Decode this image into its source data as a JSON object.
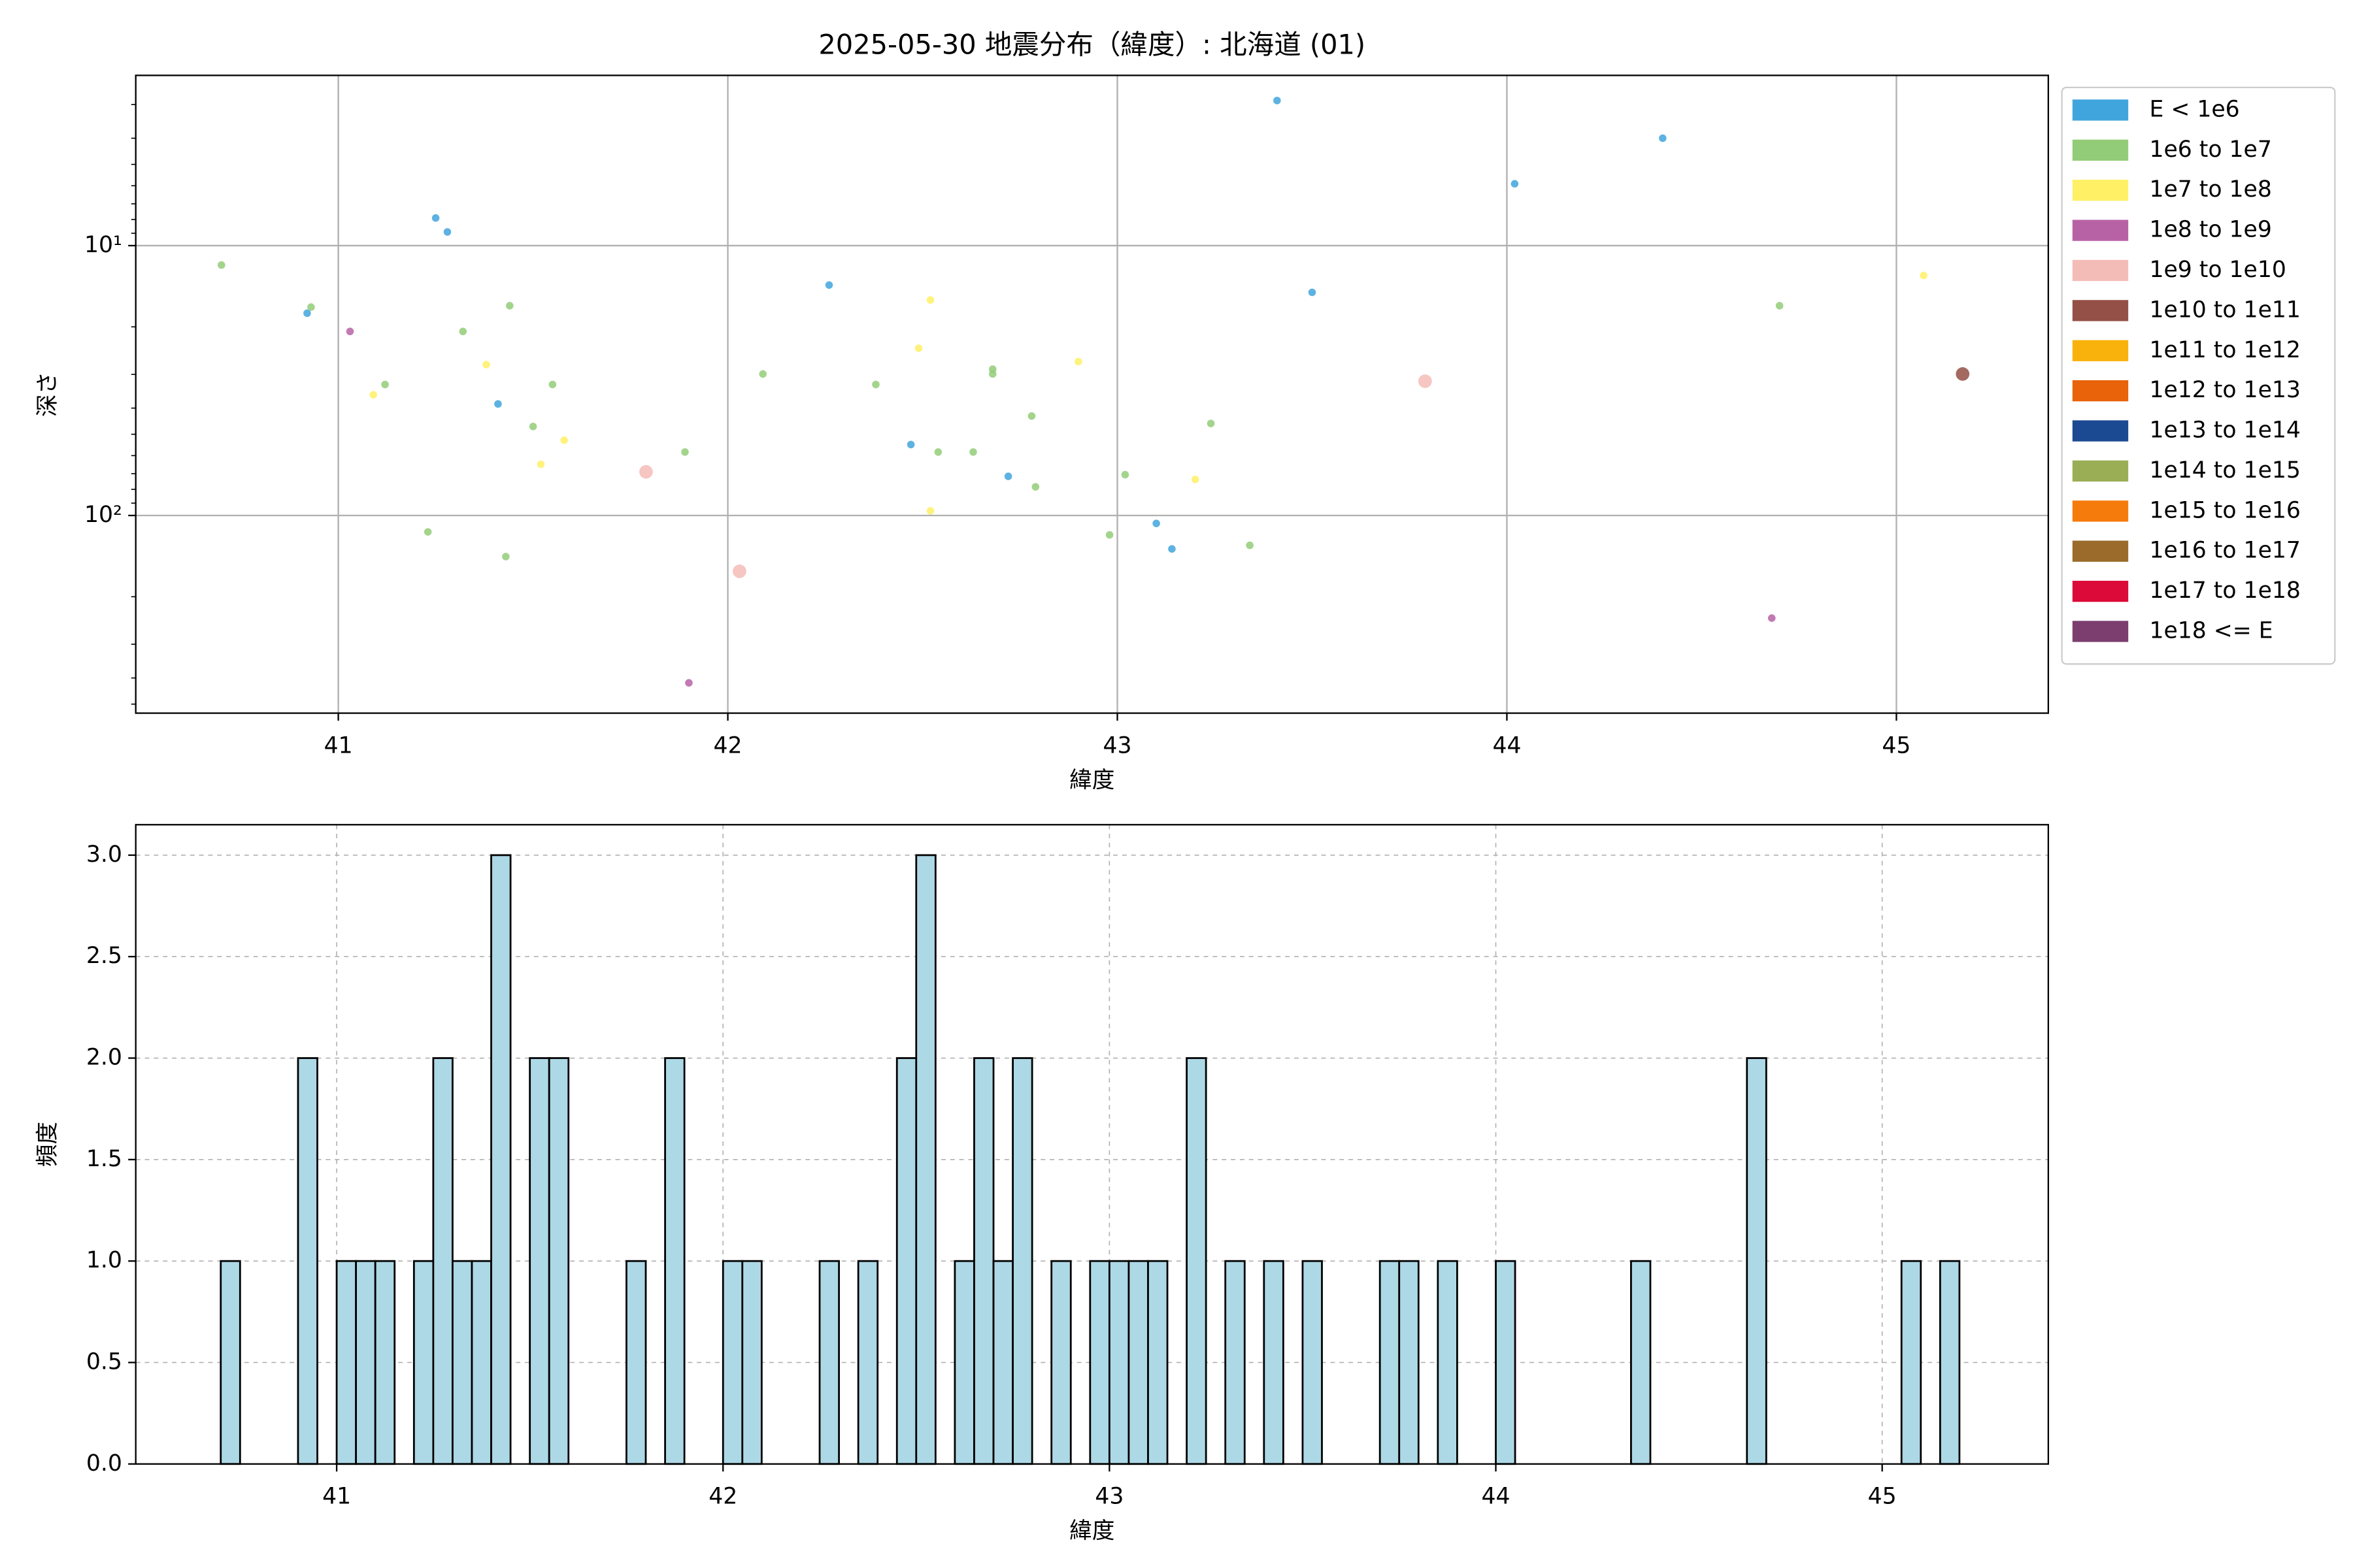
{
  "chart_data": [
    {
      "type": "scatter",
      "title": "2025-05-30 地震分布（緯度）: 北海道 (01)",
      "x_label": "緯度",
      "y_label": "深さ",
      "xlim": [
        40.48,
        45.39
      ],
      "xticks": [
        41,
        42,
        43,
        44,
        45
      ],
      "ylim": [
        2.34,
        540
      ],
      "y_log": true,
      "y_inverted": true,
      "yticks": [
        {
          "value": 10,
          "label": "10¹"
        },
        {
          "value": 100,
          "label": "10²"
        }
      ],
      "yticks_minor": [
        3,
        4,
        5,
        6,
        7,
        8,
        9,
        20,
        30,
        40,
        50,
        60,
        70,
        80,
        90,
        200,
        300,
        400,
        500
      ],
      "grid": true,
      "legend": "outside upper right",
      "series": [
        {
          "name": "E < 1e6",
          "color": "#41a5dd",
          "marker_size": 5,
          "x": [
            40.92,
            41.25,
            41.28,
            41.41,
            42.26,
            42.47,
            42.72,
            43.1,
            43.14,
            43.41,
            43.5,
            44.02,
            44.4
          ],
          "values": [
            17.8,
            7.9,
            8.9,
            38.6,
            14.0,
            54.6,
            71.6,
            107,
            133,
            2.9,
            14.9,
            5.9,
            4.0
          ]
        },
        {
          "name": "1e6 to 1e7",
          "color": "#93cc78",
          "marker_size": 5,
          "x": [
            40.7,
            40.93,
            41.12,
            41.23,
            41.32,
            41.43,
            41.44,
            41.5,
            41.55,
            41.89,
            42.09,
            42.38,
            42.54,
            42.63,
            42.68,
            42.68,
            42.78,
            42.79,
            42.98,
            43.02,
            43.24,
            43.34,
            44.7
          ],
          "values": [
            11.8,
            16.9,
            32.7,
            115,
            20.8,
            142,
            16.7,
            46.8,
            32.7,
            58.2,
            29.9,
            32.7,
            58.2,
            58.2,
            28.7,
            29.9,
            42.8,
            78.3,
            118,
            70.6,
            45.6,
            129,
            16.7
          ]
        },
        {
          "name": "1e7 to 1e8",
          "color": "#fff066",
          "marker_size": 5,
          "x": [
            41.09,
            41.38,
            41.52,
            41.58,
            42.49,
            42.52,
            42.52,
            42.9,
            43.2,
            45.07
          ],
          "values": [
            35.7,
            27.6,
            64.6,
            52.6,
            24.0,
            15.9,
            96.1,
            26.9,
            73.5,
            12.9
          ]
        },
        {
          "name": "1e8 to 1e9",
          "color": "#b862a6",
          "marker_size": 5,
          "x": [
            41.03,
            41.9,
            44.68
          ],
          "values": [
            20.8,
            417,
            240
          ]
        },
        {
          "name": "1e9 to 1e10",
          "color": "#f4bcb7",
          "marker_size": 9,
          "x": [
            41.79,
            42.03,
            43.79
          ],
          "values": [
            68.9,
            161,
            31.8
          ]
        },
        {
          "name": "1e10 to 1e11",
          "color": "#945046",
          "marker_size": 9,
          "x": [
            45.17
          ],
          "values": [
            29.9
          ]
        },
        {
          "name": "1e11 to 1e12",
          "color": "#f9b20c",
          "marker_size": 5,
          "x": [],
          "values": []
        },
        {
          "name": "1e12 to 1e13",
          "color": "#e8630a",
          "marker_size": 5,
          "x": [],
          "values": []
        },
        {
          "name": "1e13 to 1e14",
          "color": "#1c4a92",
          "marker_size": 5,
          "x": [],
          "values": []
        },
        {
          "name": "1e14 to 1e15",
          "color": "#9aae55",
          "marker_size": 5,
          "x": [],
          "values": []
        },
        {
          "name": "1e15 to 1e16",
          "color": "#f67b0d",
          "marker_size": 5,
          "x": [],
          "values": []
        },
        {
          "name": "1e16 to 1e17",
          "color": "#9a6b2a",
          "marker_size": 5,
          "x": [],
          "values": []
        },
        {
          "name": "1e17 to 1e18",
          "color": "#dc0a38",
          "marker_size": 5,
          "x": [],
          "values": []
        },
        {
          "name": "1e18 <= E",
          "color": "#7c3e6e",
          "marker_size": 5,
          "x": [],
          "values": []
        }
      ]
    },
    {
      "type": "histogram",
      "x_label": "緯度",
      "y_label": "頻度",
      "xlim": [
        40.48,
        45.43
      ],
      "xticks": [
        41,
        42,
        43,
        44,
        45
      ],
      "ylim": [
        0,
        3.15
      ],
      "yticks": [
        {
          "value": 0,
          "label": "0.0"
        },
        0.5,
        {
          "value": 1,
          "label": "1.0"
        },
        1.5,
        {
          "value": 2,
          "label": "2.0"
        },
        2.5,
        {
          "value": 3,
          "label": "3.0"
        }
      ],
      "grid": true,
      "grid_style": "dashed",
      "color": "#add8e6",
      "edgecolor": "#000000",
      "bins": [
        40.7,
        40.75,
        40.8,
        40.85,
        40.9,
        40.95,
        41.0,
        41.05,
        41.1,
        41.15,
        41.2,
        41.25,
        41.3,
        41.35,
        41.4,
        41.45,
        41.5,
        41.55,
        41.6,
        41.65,
        41.7,
        41.75,
        41.8,
        41.85,
        41.9,
        41.95,
        42.0,
        42.05,
        42.1,
        42.15,
        42.2,
        42.25,
        42.3,
        42.35,
        42.4,
        42.45,
        42.5,
        42.55,
        42.6,
        42.65,
        42.7,
        42.75,
        42.8,
        42.85,
        42.9,
        42.95,
        43.0,
        43.05,
        43.1,
        43.15,
        43.2,
        43.25,
        43.3,
        43.35,
        43.4,
        43.45,
        43.5,
        43.55,
        43.6,
        43.65,
        43.7,
        43.75,
        43.8,
        43.85,
        43.9,
        43.95,
        44.0,
        44.05,
        44.1,
        44.15,
        44.2,
        44.25,
        44.3,
        44.35,
        44.4,
        44.45,
        44.5,
        44.55,
        44.6,
        44.65,
        44.7,
        44.75,
        44.8,
        44.85,
        44.9,
        44.95,
        45.0,
        45.05,
        45.1,
        45.15,
        45.2
      ],
      "values": [
        1,
        0,
        0,
        0,
        2,
        0,
        1,
        1,
        1,
        0,
        1,
        2,
        1,
        1,
        3,
        0,
        2,
        2,
        0,
        0,
        0,
        1,
        0,
        2,
        0,
        0,
        1,
        1,
        0,
        0,
        0,
        1,
        0,
        1,
        0,
        2,
        3,
        0,
        1,
        2,
        1,
        2,
        0,
        1,
        0,
        1,
        1,
        1,
        1,
        0,
        2,
        0,
        1,
        0,
        1,
        0,
        1,
        0,
        0,
        0,
        1,
        1,
        0,
        1,
        0,
        0,
        1,
        0,
        0,
        0,
        0,
        0,
        0,
        1,
        0,
        0,
        0,
        0,
        0,
        2,
        0,
        0,
        0,
        0,
        0,
        0,
        0,
        1,
        0,
        1
      ]
    }
  ]
}
